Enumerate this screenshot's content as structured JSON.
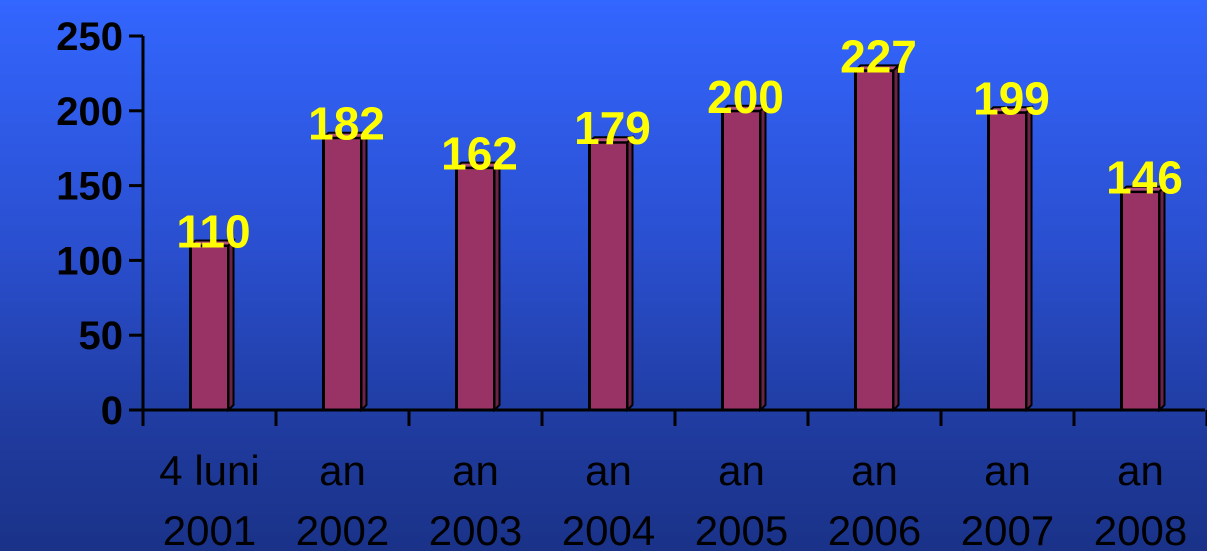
{
  "chart_data": {
    "type": "bar",
    "categories": [
      [
        "4 luni",
        "2001"
      ],
      [
        "an",
        "2002"
      ],
      [
        "an",
        "2003"
      ],
      [
        "an",
        "2004"
      ],
      [
        "an",
        "2005"
      ],
      [
        "an",
        "2006"
      ],
      [
        "an",
        "2007"
      ],
      [
        "an",
        "2008"
      ]
    ],
    "values": [
      110,
      182,
      162,
      179,
      200,
      227,
      199,
      146
    ],
    "data_labels": [
      "110",
      "182",
      "162",
      "179",
      "200",
      "227",
      "199",
      "146"
    ],
    "yticks": [
      0,
      50,
      100,
      150,
      200,
      250
    ],
    "ylim": [
      0,
      250
    ],
    "grid": false,
    "legend": "none",
    "title": "",
    "xlabel": "",
    "ylabel": "",
    "colors": {
      "bar_fill": "#993366",
      "bar_stroke": "#000000",
      "data_label": "#ffff00",
      "axis": "#000000",
      "background_top": "#3366ff",
      "background_bottom": "#1a3288"
    }
  }
}
